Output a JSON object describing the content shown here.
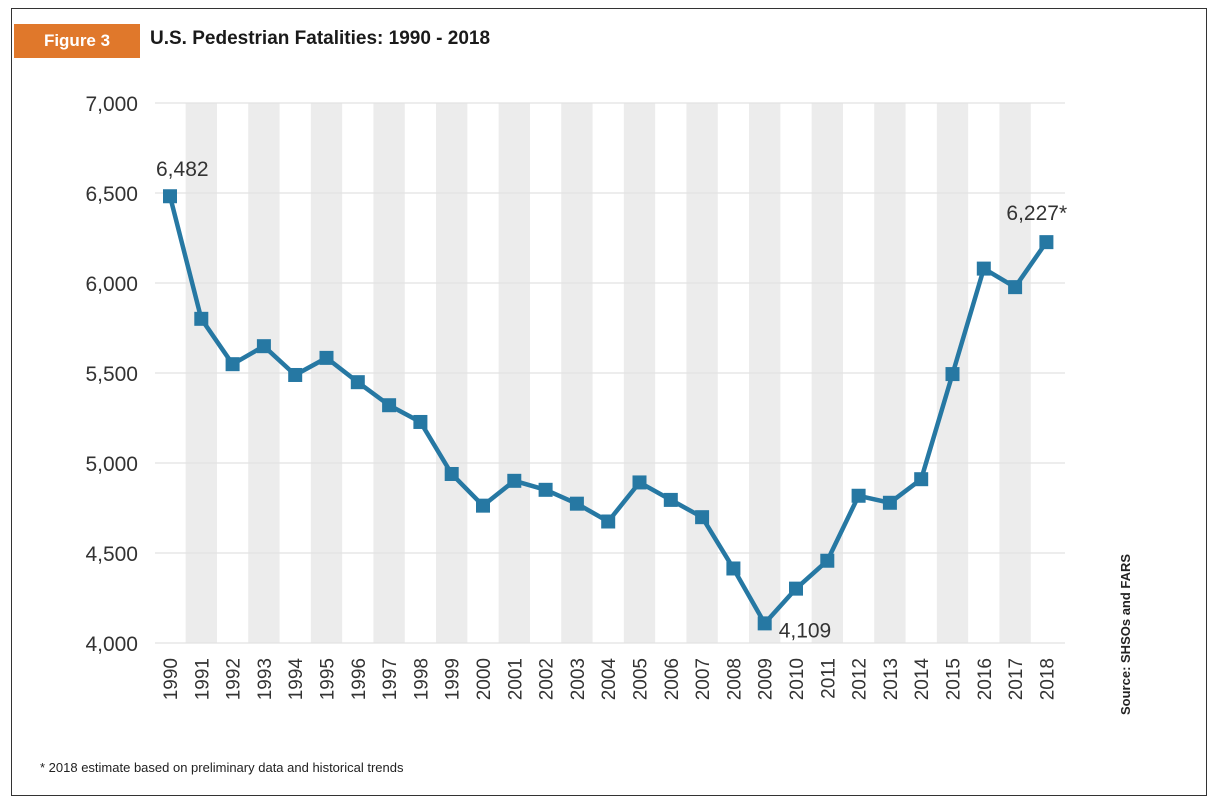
{
  "figure": {
    "badge": "Figure 3",
    "title": "U.S. Pedestrian Fatalities: 1990 - 2018",
    "footnote": "* 2018 estimate based on preliminary data and historical trends",
    "source": "Source: SHSOs and FARS"
  },
  "colors": {
    "line": "#2678a3",
    "badge": "#e0782b",
    "stripe": "#ececec",
    "grid": "#e2e2e2"
  },
  "chart_data": {
    "type": "line",
    "title": "U.S. Pedestrian Fatalities: 1990 - 2018",
    "xlabel": "",
    "ylabel": "",
    "ylim": [
      4000,
      7000
    ],
    "yticks": [
      4000,
      4500,
      5000,
      5500,
      6000,
      6500,
      7000
    ],
    "ytick_labels": [
      "4,000",
      "4,500",
      "5,000",
      "5,500",
      "6,000",
      "6,500",
      "7,000"
    ],
    "grid": true,
    "categories": [
      "1990",
      "1991",
      "1992",
      "1993",
      "1994",
      "1995",
      "1996",
      "1997",
      "1998",
      "1999",
      "2000",
      "2001",
      "2002",
      "2003",
      "2004",
      "2005",
      "2006",
      "2007",
      "2008",
      "2009",
      "2010",
      "2011",
      "2012",
      "2013",
      "2014",
      "2015",
      "2016",
      "2017",
      "2018"
    ],
    "series": [
      {
        "values": [
          6482,
          5801,
          5549,
          5649,
          5489,
          5584,
          5449,
          5321,
          5228,
          4939,
          4763,
          4901,
          4851,
          4774,
          4675,
          4892,
          4795,
          4699,
          4414,
          4109,
          4302,
          4457,
          4818,
          4779,
          4910,
          5494,
          6080,
          5977,
          6227
        ]
      }
    ],
    "annotations": [
      {
        "index": 0,
        "text": "6,482"
      },
      {
        "index": 19,
        "text": "4,109"
      },
      {
        "index": 28,
        "text": "6,227*"
      }
    ]
  }
}
